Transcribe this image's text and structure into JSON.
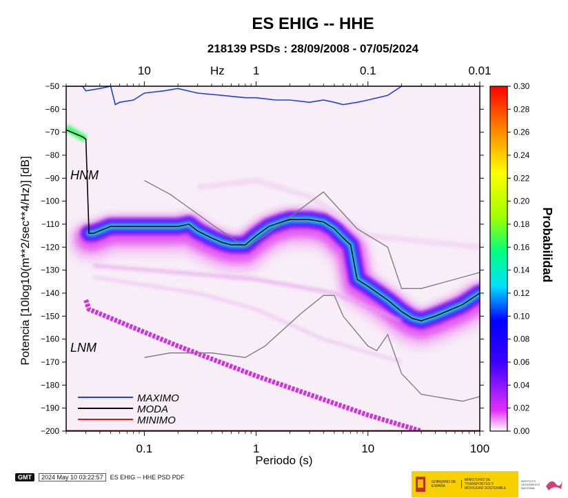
{
  "chart_data": {
    "type": "heatmap",
    "title": "ES EHIG -- HHE",
    "subtitle": "218139 PSDs : 28/09/2008 - 07/05/2024",
    "xlabel": "Periodo (s)",
    "ylabel": "Potencia [10log10(m**2/sec**4/Hz)] [dB]",
    "top_axis_label": "Hz",
    "x_scale": "log",
    "xlim": [
      0.02,
      100
    ],
    "ylim": [
      -200,
      -50
    ],
    "x_ticks": [
      0.1,
      1,
      10,
      100
    ],
    "x_tick_labels": [
      "0.1",
      "1",
      "10",
      "100"
    ],
    "top_ticks": [
      10,
      1,
      0.1,
      0.01
    ],
    "top_tick_labels": [
      "10",
      "1",
      "0.1",
      "0.01"
    ],
    "y_ticks": [
      -50,
      -60,
      -70,
      -80,
      -90,
      -100,
      -110,
      -120,
      -130,
      -140,
      -150,
      -160,
      -170,
      -180,
      -190,
      -200
    ],
    "y_tick_labels": [
      "−50",
      "−60",
      "−70",
      "−80",
      "−90",
      "−100",
      "−110",
      "−120",
      "−130",
      "−140",
      "−150",
      "−160",
      "−170",
      "−180",
      "−190",
      "−200"
    ],
    "colorbar": {
      "label": "Probabilidad",
      "range": [
        0.0,
        0.3
      ],
      "ticks": [
        "0.00",
        "0.02",
        "0.04",
        "0.06",
        "0.08",
        "0.10",
        "0.12",
        "0.14",
        "0.16",
        "0.18",
        "0.20",
        "0.22",
        "0.24",
        "0.26",
        "0.28",
        "0.30"
      ]
    },
    "annotations": [
      "HNM",
      "LNM"
    ],
    "legend_position": "bottom-left",
    "series": [
      {
        "name": "MAXIMO",
        "color": "#1f3fe0",
        "x": [
          0.02,
          0.028,
          0.03,
          0.04,
          0.05,
          0.055,
          0.06,
          0.08,
          0.1,
          0.15,
          0.2,
          0.3,
          0.5,
          0.8,
          1,
          1.5,
          2,
          3,
          4,
          5,
          6,
          8,
          10,
          15,
          20,
          30,
          50,
          100
        ],
        "y": [
          -50,
          -50,
          -52,
          -51,
          -50,
          -58,
          -57,
          -56,
          -53,
          -52,
          -51,
          -53,
          -54,
          -55,
          -55,
          -56,
          -56,
          -57,
          -56,
          -57,
          -58,
          -57,
          -56,
          -54,
          -50,
          -50,
          -50,
          -50
        ]
      },
      {
        "name": "MODA",
        "color": "#000000",
        "x": [
          0.02,
          0.025,
          0.028,
          0.03,
          0.032,
          0.035,
          0.05,
          0.1,
          0.2,
          0.25,
          0.3,
          0.4,
          0.5,
          0.6,
          0.8,
          1,
          1.3,
          1.7,
          2,
          2.5,
          3,
          4,
          5,
          6,
          7,
          8,
          10,
          15,
          20,
          25,
          30,
          40,
          50,
          70,
          100
        ],
        "y": [
          -69,
          -71,
          -72,
          -73,
          -114,
          -114,
          -111,
          -111,
          -111,
          -110,
          -113,
          -116,
          -118,
          -119,
          -119,
          -115,
          -111,
          -109,
          -108,
          -108,
          -108,
          -109,
          -112,
          -116,
          -119,
          -134,
          -137,
          -143,
          -148,
          -151,
          -152,
          -150,
          -148,
          -145,
          -140
        ]
      },
      {
        "name": "MINIMO",
        "color": "#e01010",
        "x": [
          0.02,
          100
        ],
        "y": [
          -200,
          -200
        ]
      }
    ],
    "noise_models": [
      {
        "name": "HNM",
        "color": "#777777",
        "x": [
          0.1,
          0.17,
          0.4,
          0.8,
          1.2,
          4,
          8,
          15,
          20,
          30,
          100
        ],
        "y": [
          -91,
          -97,
          -110,
          -120,
          -115,
          -96,
          -112,
          -120,
          -138,
          -138,
          -131
        ]
      },
      {
        "name": "LNM",
        "color": "#777777",
        "x": [
          0.1,
          0.17,
          0.4,
          0.8,
          1.2,
          2.5,
          4,
          5,
          6,
          10,
          12,
          15,
          20,
          30,
          70,
          100
        ],
        "y": [
          -168,
          -166,
          -166,
          -168,
          -163,
          -149,
          -141,
          -141,
          -150,
          -163,
          -165,
          -158,
          -175,
          -184,
          -187,
          -185
        ]
      }
    ]
  },
  "footer": {
    "gmt": "GMT",
    "timestamp": "2024 May 10 03:22:57",
    "filename": "ES EHIG -- HHE PSD PDF"
  },
  "logos": {
    "gobierno": "GOBIERNO DE ESPAÑA",
    "ministerio": "MINISTERIO DE TRANSPORTES Y MOVILIDAD SOSTENIBLE",
    "instituto": "INSTITUTO GEOGRÁFICO NACIONAL"
  }
}
